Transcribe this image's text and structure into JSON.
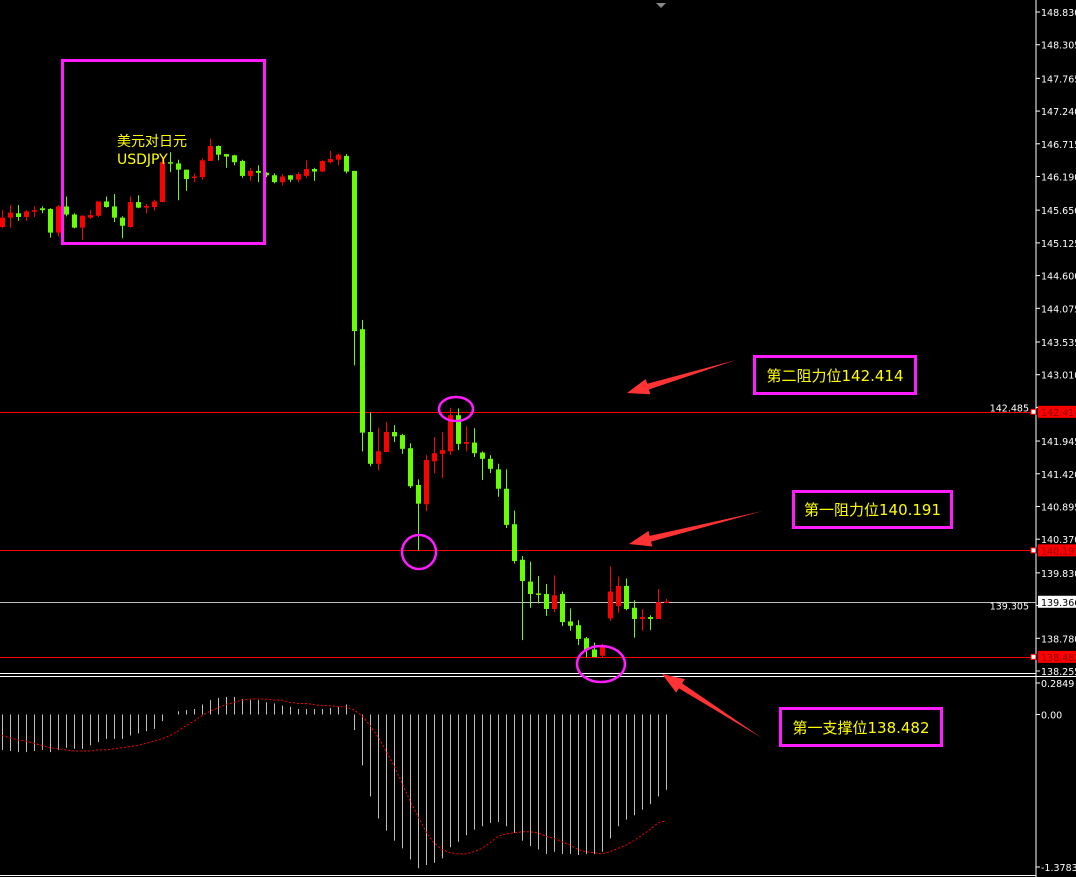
{
  "chart_data": {
    "type": "candlestick",
    "symbol_label": "美元对日元",
    "symbol": "USDJPY",
    "colors": {
      "up": "#ff0000",
      "down": "#66ff00",
      "background": "#000000",
      "annotation_box": "#ff1cff",
      "annotation_text": "#ffff00",
      "arrow": "#ff3333",
      "macd_histogram": "#c0c0c0",
      "macd_signal": "#ff0000"
    },
    "price_axis": {
      "range": [
        138.255,
        148.83
      ],
      "ticks": [
        "148.830",
        "148.305",
        "147.765",
        "147.240",
        "146.715",
        "146.190",
        "145.650",
        "145.125",
        "144.600",
        "144.075",
        "143.535",
        "143.010",
        "142.485",
        "141.945",
        "141.420",
        "140.895",
        "140.370",
        "139.830",
        "139.305",
        "138.780",
        "138.255"
      ]
    },
    "candles_ohlc": [
      [
        145.38,
        145.65,
        145.36,
        145.53
      ],
      [
        145.53,
        145.73,
        145.37,
        145.61
      ],
      [
        145.6,
        145.73,
        145.48,
        145.54
      ],
      [
        145.54,
        145.65,
        145.48,
        145.63
      ],
      [
        145.63,
        145.71,
        145.54,
        145.65
      ],
      [
        145.68,
        145.71,
        145.6,
        145.65
      ],
      [
        145.67,
        145.68,
        145.21,
        145.29
      ],
      [
        145.29,
        145.73,
        145.23,
        145.71
      ],
      [
        145.71,
        145.87,
        145.55,
        145.58
      ],
      [
        145.58,
        145.6,
        145.36,
        145.37
      ],
      [
        145.37,
        145.57,
        145.17,
        145.56
      ],
      [
        145.53,
        145.65,
        145.51,
        145.57
      ],
      [
        145.56,
        145.79,
        145.54,
        145.79
      ],
      [
        145.79,
        145.87,
        145.69,
        145.7
      ],
      [
        145.71,
        145.91,
        145.46,
        145.53
      ],
      [
        145.53,
        145.55,
        145.2,
        145.4
      ],
      [
        145.38,
        145.87,
        145.37,
        145.78
      ],
      [
        145.78,
        145.89,
        145.68,
        145.69
      ],
      [
        145.69,
        145.75,
        145.6,
        145.72
      ],
      [
        145.7,
        145.82,
        145.64,
        145.79
      ],
      [
        145.78,
        146.51,
        145.78,
        146.42
      ],
      [
        146.42,
        146.58,
        146.26,
        146.4
      ],
      [
        146.4,
        146.46,
        145.81,
        146.3
      ],
      [
        146.3,
        146.3,
        145.96,
        146.15
      ],
      [
        146.17,
        146.24,
        146.1,
        146.19
      ],
      [
        146.18,
        146.48,
        146.14,
        146.45
      ],
      [
        146.44,
        146.8,
        146.44,
        146.68
      ],
      [
        146.68,
        146.69,
        146.45,
        146.54
      ],
      [
        146.55,
        146.55,
        146.33,
        146.51
      ],
      [
        146.53,
        146.54,
        146.37,
        146.42
      ],
      [
        146.44,
        146.46,
        146.17,
        146.2
      ],
      [
        146.2,
        146.33,
        146.12,
        146.28
      ],
      [
        146.28,
        146.37,
        146.1,
        146.25
      ],
      [
        146.25,
        146.26,
        146.18,
        146.21
      ],
      [
        146.21,
        146.24,
        146.08,
        146.1
      ],
      [
        146.1,
        146.23,
        146.05,
        146.19
      ],
      [
        146.21,
        146.21,
        146.1,
        146.14
      ],
      [
        146.14,
        146.26,
        146.1,
        146.23
      ],
      [
        146.2,
        146.45,
        146.17,
        146.31
      ],
      [
        146.31,
        146.33,
        146.12,
        146.27
      ],
      [
        146.27,
        146.45,
        146.26,
        146.44
      ],
      [
        146.42,
        146.6,
        146.4,
        146.47
      ],
      [
        146.46,
        146.56,
        146.37,
        146.54
      ],
      [
        146.52,
        146.55,
        146.24,
        146.27
      ],
      [
        146.28,
        146.28,
        143.16,
        143.71
      ],
      [
        143.74,
        143.89,
        141.78,
        142.08
      ],
      [
        142.09,
        142.41,
        141.54,
        141.58
      ],
      [
        141.58,
        142.16,
        141.47,
        141.78
      ],
      [
        141.77,
        142.25,
        141.77,
        142.09
      ],
      [
        142.09,
        142.2,
        141.93,
        142.02
      ],
      [
        142.04,
        142.06,
        141.74,
        141.82
      ],
      [
        141.83,
        141.91,
        141.19,
        141.22
      ],
      [
        141.24,
        141.33,
        140.19,
        140.94
      ],
      [
        140.93,
        141.72,
        140.82,
        141.64
      ],
      [
        141.62,
        142.01,
        141.43,
        141.75
      ],
      [
        141.74,
        142.09,
        141.35,
        141.8
      ],
      [
        141.78,
        142.48,
        141.72,
        142.36
      ],
      [
        142.36,
        142.47,
        141.8,
        141.9
      ],
      [
        141.9,
        142.18,
        141.78,
        141.93
      ],
      [
        141.92,
        142.15,
        141.69,
        141.75
      ],
      [
        141.76,
        141.78,
        141.32,
        141.66
      ],
      [
        141.66,
        141.72,
        141.43,
        141.5
      ],
      [
        141.49,
        141.58,
        141.05,
        141.18
      ],
      [
        141.18,
        141.49,
        140.55,
        140.6
      ],
      [
        140.61,
        140.83,
        139.98,
        140.02
      ],
      [
        140.04,
        140.1,
        138.75,
        139.7
      ],
      [
        139.69,
        140.01,
        139.27,
        139.49
      ],
      [
        139.5,
        139.78,
        139.34,
        139.48
      ],
      [
        139.49,
        139.65,
        139.14,
        139.25
      ],
      [
        139.25,
        139.79,
        139.2,
        139.47
      ],
      [
        139.49,
        139.53,
        138.98,
        139.04
      ],
      [
        139.05,
        139.26,
        138.9,
        138.98
      ],
      [
        138.99,
        139.07,
        138.67,
        138.77
      ],
      [
        138.78,
        138.8,
        138.48,
        138.59
      ],
      [
        138.6,
        138.71,
        138.48,
        138.48
      ],
      [
        138.5,
        138.69,
        138.47,
        138.65
      ],
      [
        139.1,
        139.93,
        139.06,
        139.53
      ],
      [
        139.3,
        139.77,
        139.19,
        139.62
      ],
      [
        139.62,
        139.74,
        139.23,
        139.25
      ],
      [
        139.27,
        139.39,
        138.79,
        139.09
      ],
      [
        139.09,
        139.25,
        138.9,
        139.12
      ],
      [
        139.12,
        139.15,
        138.91,
        139.09
      ],
      [
        139.09,
        139.57,
        139.09,
        139.36
      ],
      [
        139.35,
        139.41,
        139.34,
        139.37
      ]
    ],
    "levels": [
      {
        "price": 142.414,
        "label": "142.414",
        "color": "#ff0000"
      },
      {
        "price": 140.191,
        "label": "140.191",
        "color": "#ff0000"
      },
      {
        "price": 139.366,
        "label": "139.366",
        "color": "#c0c0c0"
      },
      {
        "price": 138.482,
        "label": "138.482",
        "color": "#ff0000"
      }
    ],
    "annotations": [
      {
        "text": "第二阻力位142.414",
        "price": 142.414
      },
      {
        "text": "第一阻力位140.191",
        "price": 140.191
      },
      {
        "text": "第一支撑位138.482",
        "price": 138.482
      }
    ],
    "macd": {
      "range": [
        -1.3783,
        0.2849
      ],
      "ticks": [
        "0.2849",
        "0.00",
        "-1.3783"
      ],
      "histogram": [
        -0.32,
        -0.33,
        -0.34,
        -0.34,
        -0.33,
        -0.32,
        -0.34,
        -0.32,
        -0.3,
        -0.31,
        -0.31,
        -0.28,
        -0.25,
        -0.22,
        -0.22,
        -0.22,
        -0.19,
        -0.17,
        -0.15,
        -0.13,
        -0.06,
        0.0,
        0.03,
        0.04,
        0.05,
        0.09,
        0.13,
        0.15,
        0.16,
        0.16,
        0.14,
        0.13,
        0.13,
        0.11,
        0.1,
        0.08,
        0.07,
        0.05,
        0.05,
        0.05,
        0.05,
        0.06,
        0.07,
        0.09,
        -0.14,
        -0.46,
        -0.74,
        -0.94,
        -1.05,
        -1.14,
        -1.21,
        -1.31,
        -1.39,
        -1.36,
        -1.34,
        -1.3,
        -1.2,
        -1.15,
        -1.09,
        -1.04,
        -1.01,
        -0.98,
        -0.97,
        -1.01,
        -1.07,
        -1.14,
        -1.19,
        -1.22,
        -1.26,
        -1.24,
        -1.26,
        -1.26,
        -1.27,
        -1.26,
        -1.26,
        -1.24,
        -1.12,
        -1.01,
        -0.95,
        -0.91,
        -0.86,
        -0.81,
        -0.74,
        -0.68
      ],
      "signal": [
        -0.19,
        -0.21,
        -0.23,
        -0.24,
        -0.26,
        -0.28,
        -0.3,
        -0.31,
        -0.32,
        -0.33,
        -0.33,
        -0.33,
        -0.32,
        -0.32,
        -0.31,
        -0.3,
        -0.29,
        -0.28,
        -0.26,
        -0.24,
        -0.22,
        -0.19,
        -0.15,
        -0.1,
        -0.06,
        -0.01,
        0.03,
        0.06,
        0.09,
        0.11,
        0.13,
        0.14,
        0.14,
        0.14,
        0.13,
        0.13,
        0.11,
        0.1,
        0.1,
        0.09,
        0.08,
        0.08,
        0.07,
        0.07,
        0.04,
        -0.01,
        -0.1,
        -0.2,
        -0.33,
        -0.46,
        -0.62,
        -0.78,
        -0.92,
        -1.06,
        -1.16,
        -1.22,
        -1.25,
        -1.26,
        -1.26,
        -1.24,
        -1.21,
        -1.16,
        -1.1,
        -1.08,
        -1.07,
        -1.06,
        -1.06,
        -1.07,
        -1.1,
        -1.12,
        -1.15,
        -1.18,
        -1.22,
        -1.24,
        -1.25,
        -1.26,
        -1.24,
        -1.21,
        -1.18,
        -1.14,
        -1.09,
        -1.04,
        -0.98,
        -0.96
      ]
    }
  }
}
